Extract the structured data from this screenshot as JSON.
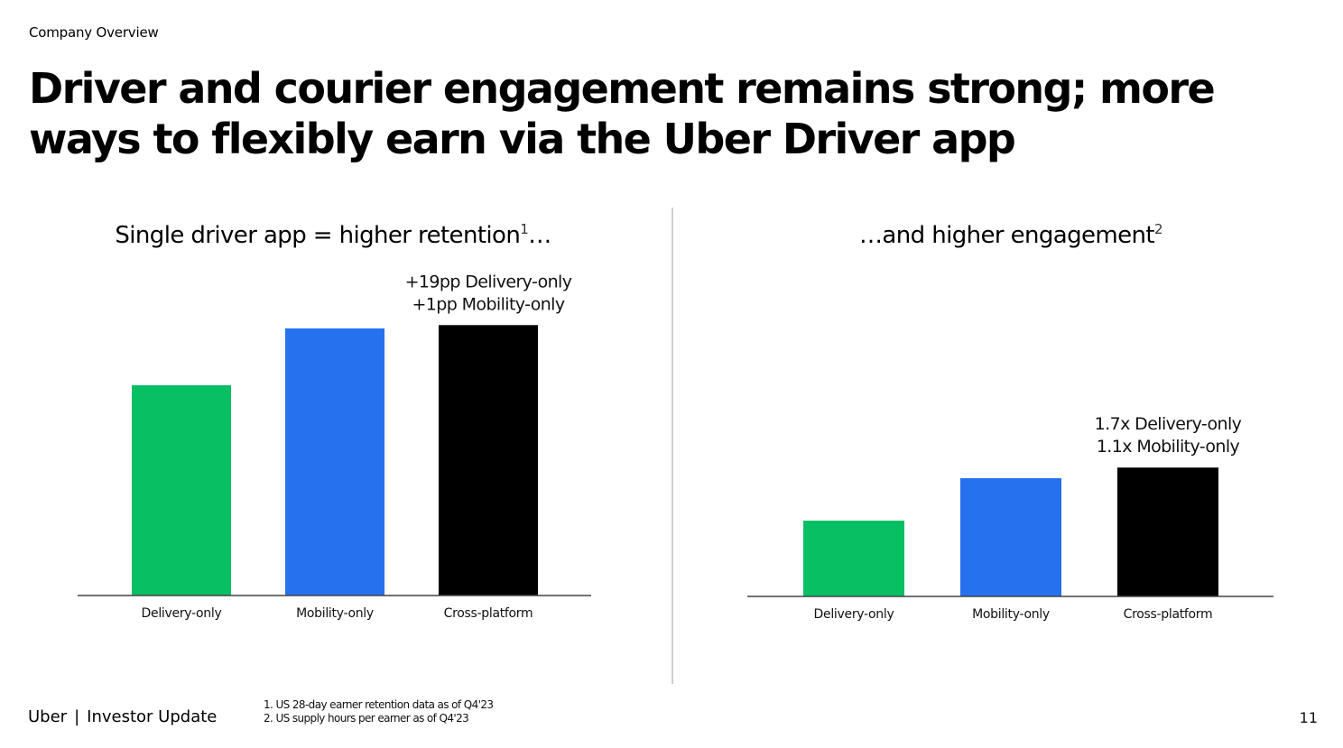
{
  "header": {
    "section_label": "Company Overview",
    "title": "Driver and courier engagement remains strong; more ways to flexibly earn via the Uber Driver app"
  },
  "chart_data": [
    {
      "type": "bar",
      "title": "Single driver app = higher retention",
      "title_note": "1",
      "title_suffix": "…",
      "categories": [
        "Delivery-only",
        "Mobility-only",
        "Cross-platform"
      ],
      "values": [
        63,
        80,
        81
      ],
      "ylim": [
        0,
        100
      ],
      "colors": [
        "#09bf63",
        "#2571ee",
        "#000000"
      ],
      "annotation": [
        "+19pp Delivery-only",
        "+1pp Mobility-only"
      ],
      "grid": false,
      "legend": "none"
    },
    {
      "type": "bar",
      "title": "…and higher engagement",
      "title_note": "2",
      "title_suffix": "",
      "categories": [
        "Delivery-only",
        "Mobility-only",
        "Cross-platform"
      ],
      "values": [
        1.0,
        1.56,
        1.7
      ],
      "ylim": [
        0,
        2.0
      ],
      "colors": [
        "#09bf63",
        "#2571ee",
        "#000000"
      ],
      "annotation": [
        "1.7x Delivery-only",
        "1.1x Mobility-only"
      ],
      "grid": false,
      "legend": "none"
    }
  ],
  "footer": {
    "brand": "Uber",
    "separator": "|",
    "label": "Investor Update",
    "footnotes": [
      "1. US 28-day earner retention data as of Q4'23",
      "2. US supply hours per earner as of Q4'23"
    ],
    "page_number": "11"
  }
}
